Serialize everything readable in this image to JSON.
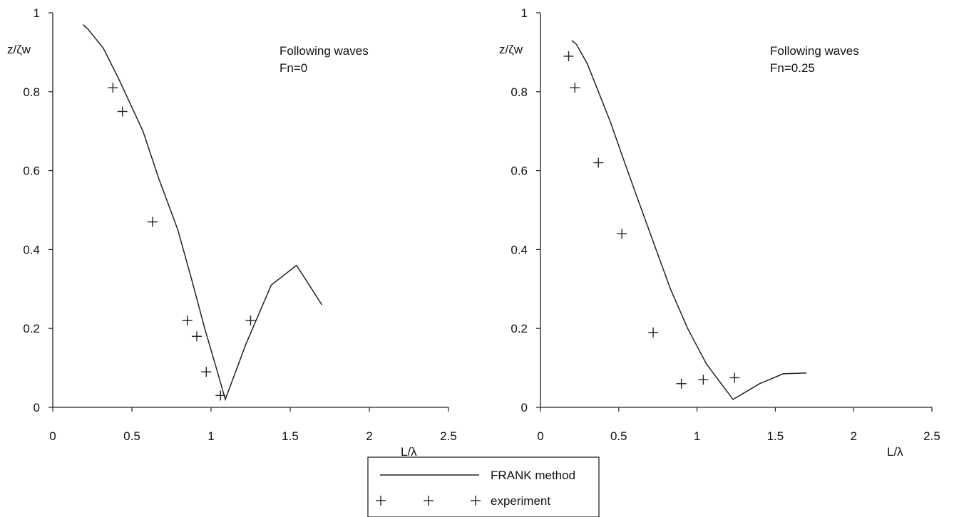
{
  "chart_data": [
    {
      "type": "line",
      "panel": "left",
      "annotation": [
        "Following waves",
        "Fn=0"
      ],
      "ylabel": "z/ζw",
      "xlabel": "L/λ",
      "xlim": [
        0,
        2.5
      ],
      "ylim": [
        0,
        1
      ],
      "xticks": [
        "0",
        "0.5",
        "1",
        "1.5",
        "2",
        "2.5"
      ],
      "yticks": [
        "0",
        "0.2",
        "0.4",
        "0.6",
        "0.8",
        "1"
      ],
      "grid": false,
      "series": [
        {
          "name": "FRANK method",
          "style": "line",
          "points": [
            [
              0.19,
              0.97
            ],
            [
              0.22,
              0.96
            ],
            [
              0.32,
              0.91
            ],
            [
              0.42,
              0.83
            ],
            [
              0.57,
              0.7
            ],
            [
              0.67,
              0.58
            ],
            [
              0.79,
              0.45
            ],
            [
              0.88,
              0.32
            ],
            [
              0.96,
              0.2
            ],
            [
              1.04,
              0.09
            ],
            [
              1.09,
              0.02
            ],
            [
              1.22,
              0.16
            ],
            [
              1.38,
              0.31
            ],
            [
              1.54,
              0.36
            ],
            [
              1.7,
              0.26
            ]
          ]
        },
        {
          "name": "experiment",
          "style": "marker",
          "points": [
            [
              0.38,
              0.81
            ],
            [
              0.44,
              0.75
            ],
            [
              0.63,
              0.47
            ],
            [
              0.85,
              0.22
            ],
            [
              0.91,
              0.18
            ],
            [
              0.97,
              0.09
            ],
            [
              1.06,
              0.03
            ],
            [
              1.25,
              0.22
            ]
          ]
        }
      ]
    },
    {
      "type": "line",
      "panel": "right",
      "annotation": [
        "Following waves",
        "Fn=0.25"
      ],
      "ylabel": "z/ζw",
      "xlabel": "L/λ",
      "xlim": [
        0,
        2.5
      ],
      "ylim": [
        0,
        1
      ],
      "xticks": [
        "0",
        "0.5",
        "1",
        "1.5",
        "2",
        "2.5"
      ],
      "yticks": [
        "0",
        "0.2",
        "0.4",
        "0.6",
        "0.8",
        "1"
      ],
      "grid": false,
      "series": [
        {
          "name": "FRANK method",
          "style": "line",
          "points": [
            [
              0.2,
              0.93
            ],
            [
              0.23,
              0.92
            ],
            [
              0.3,
              0.87
            ],
            [
              0.37,
              0.8
            ],
            [
              0.45,
              0.72
            ],
            [
              0.52,
              0.64
            ],
            [
              0.61,
              0.54
            ],
            [
              0.72,
              0.42
            ],
            [
              0.83,
              0.3
            ],
            [
              0.94,
              0.2
            ],
            [
              1.06,
              0.11
            ],
            [
              1.23,
              0.02
            ],
            [
              1.4,
              0.06
            ],
            [
              1.55,
              0.085
            ],
            [
              1.7,
              0.087
            ]
          ]
        },
        {
          "name": "experiment",
          "style": "marker",
          "points": [
            [
              0.18,
              0.89
            ],
            [
              0.22,
              0.81
            ],
            [
              0.37,
              0.62
            ],
            [
              0.52,
              0.44
            ],
            [
              0.72,
              0.19
            ],
            [
              0.9,
              0.06
            ],
            [
              1.04,
              0.07
            ],
            [
              1.24,
              0.075
            ]
          ]
        }
      ]
    }
  ],
  "legend": {
    "position": "bottom-center",
    "items": [
      {
        "label": "FRANK method",
        "style": "line"
      },
      {
        "label": "experiment",
        "style": "marker"
      }
    ]
  }
}
